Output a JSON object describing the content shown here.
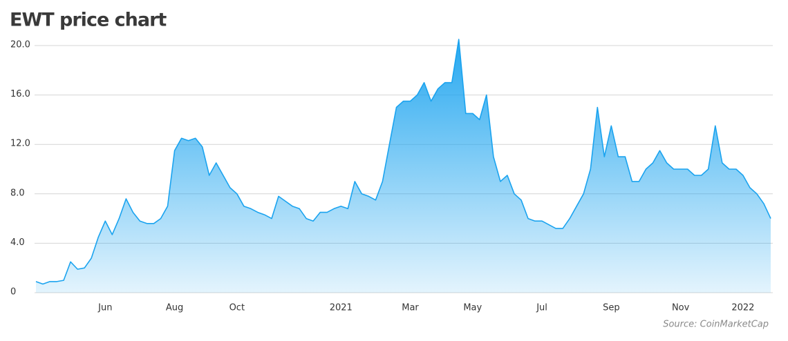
{
  "chart_data": {
    "type": "area",
    "title": "EWT price chart",
    "source": "Source: CoinMarketCap",
    "categories": [
      null,
      null,
      null,
      null,
      null,
      null,
      null,
      null,
      null,
      null,
      "Jun",
      null,
      null,
      null,
      null,
      null,
      null,
      null,
      null,
      null,
      "Aug",
      null,
      null,
      null,
      null,
      null,
      null,
      null,
      null,
      "Oct",
      null,
      null,
      null,
      null,
      null,
      null,
      null,
      null,
      null,
      null,
      null,
      null,
      null,
      null,
      "2021",
      null,
      null,
      null,
      null,
      null,
      null,
      null,
      null,
      null,
      "Mar",
      null,
      null,
      null,
      null,
      null,
      null,
      null,
      null,
      "May",
      null,
      null,
      null,
      null,
      null,
      null,
      null,
      null,
      null,
      "Jul",
      null,
      null,
      null,
      null,
      null,
      null,
      null,
      null,
      null,
      "Sep",
      null,
      null,
      null,
      null,
      null,
      null,
      null,
      null,
      null,
      "Nov",
      null,
      null,
      null,
      null,
      null,
      null,
      null,
      null,
      "2022",
      null,
      null,
      null,
      null
    ],
    "values": [
      0.9,
      0.7,
      0.9,
      0.9,
      1.0,
      2.5,
      1.9,
      2.0,
      2.8,
      4.5,
      5.8,
      4.7,
      6.0,
      7.6,
      6.5,
      5.8,
      5.6,
      5.6,
      6.0,
      7.0,
      11.5,
      12.5,
      12.3,
      12.5,
      11.8,
      9.5,
      10.5,
      9.5,
      8.5,
      8.0,
      7.0,
      6.8,
      6.5,
      6.3,
      6.0,
      7.8,
      7.4,
      7.0,
      6.8,
      6.0,
      5.8,
      6.5,
      6.5,
      6.8,
      7.0,
      6.8,
      9.0,
      8.0,
      7.8,
      7.5,
      9.0,
      12.0,
      15.0,
      15.5,
      15.5,
      16.0,
      17.0,
      15.5,
      16.5,
      17.0,
      17.0,
      20.5,
      14.5,
      14.5,
      14.0,
      16.0,
      11.0,
      9.0,
      9.5,
      8.0,
      7.5,
      6.0,
      5.8,
      5.8,
      5.5,
      5.2,
      5.2,
      6.0,
      7.0,
      8.0,
      10.0,
      15.0,
      11.0,
      13.5,
      11.0,
      11.0,
      9.0,
      9.0,
      10.0,
      10.5,
      11.5,
      10.5,
      10.0,
      10.0,
      10.0,
      9.5,
      9.5,
      10.0,
      13.5,
      10.5,
      10.0,
      10.0,
      9.5,
      8.5,
      8.0,
      7.2,
      6.0
    ],
    "color": "#1aa3ef",
    "ylim": [
      0,
      20
    ],
    "yticks": [
      0,
      {
        "value": 4,
        "label": "4.0"
      },
      {
        "value": 8,
        "label": "8.0"
      },
      {
        "value": 12,
        "label": "12.0"
      },
      {
        "value": 16,
        "label": "16.0"
      },
      {
        "value": 20,
        "label": "20.0"
      }
    ],
    "grid": true
  }
}
